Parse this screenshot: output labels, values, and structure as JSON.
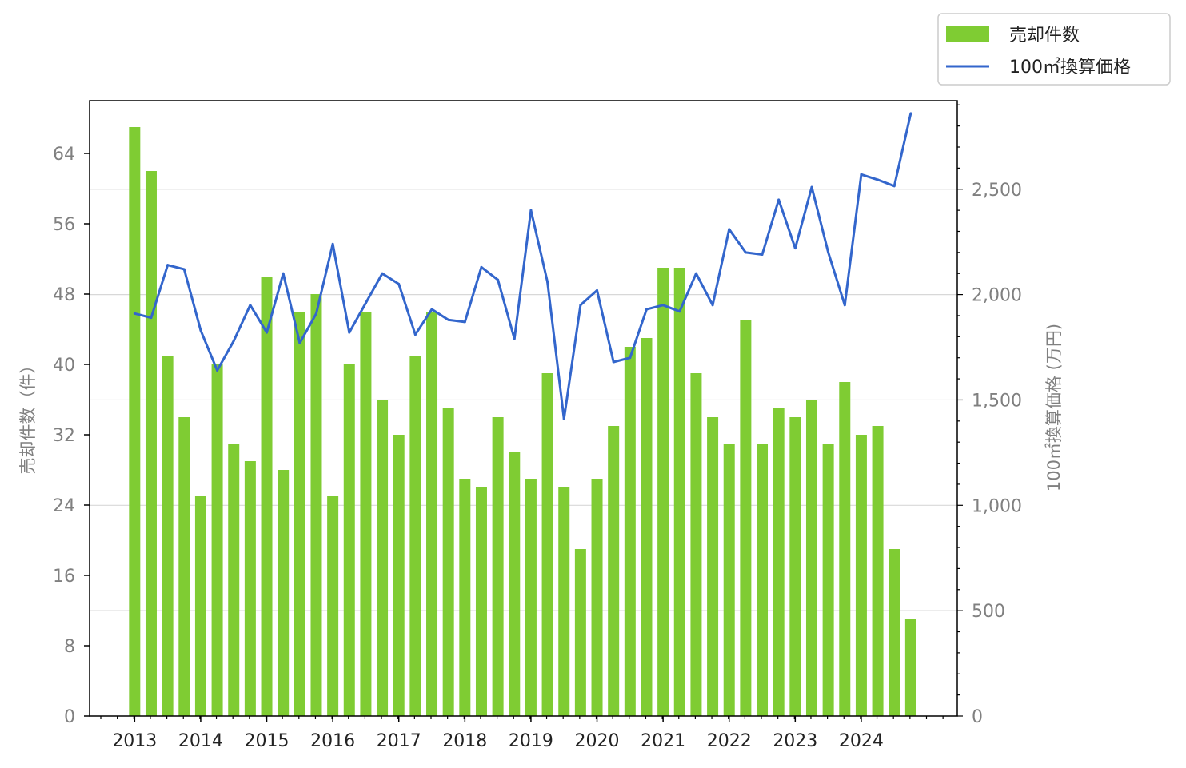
{
  "chart_data": {
    "type": "bar+line",
    "x_ticks": [
      "2013",
      "2014",
      "2015",
      "2016",
      "2017",
      "2018",
      "2019",
      "2020",
      "2021",
      "2022",
      "2023",
      "2024"
    ],
    "series": [
      {
        "name": "売却件数",
        "type": "bar",
        "axis": "left",
        "color": "#7fcc33",
        "values": [
          67,
          62,
          41,
          34,
          25,
          40,
          31,
          29,
          50,
          28,
          46,
          48,
          25,
          40,
          46,
          36,
          32,
          41,
          46,
          35,
          27,
          26,
          34,
          30,
          27,
          39,
          26,
          19,
          27,
          33,
          42,
          43,
          51,
          51,
          39,
          34,
          31,
          45,
          31,
          35,
          34,
          36,
          31,
          38,
          32,
          33,
          19,
          11
        ]
      },
      {
        "name": "100㎡換算価格",
        "type": "line",
        "axis": "right",
        "color": "#3366cc",
        "values": [
          1910,
          1890,
          2140,
          2120,
          1830,
          1640,
          1780,
          1950,
          1820,
          2100,
          1770,
          1910,
          2240,
          1820,
          1960,
          2100,
          2050,
          1810,
          1930,
          1880,
          1870,
          2130,
          2070,
          1790,
          2400,
          2060,
          1410,
          1950,
          2020,
          1680,
          1700,
          1930,
          1950,
          1920,
          2100,
          1950,
          2310,
          2200,
          2190,
          2450,
          2220,
          2510,
          2200,
          1950,
          2570,
          2545,
          2515,
          2860
        ]
      }
    ],
    "y_left": {
      "label": "売却件数（件）",
      "range": [
        0,
        70
      ],
      "ticks": [
        "0",
        "8",
        "16",
        "24",
        "32",
        "40",
        "48",
        "56",
        "64"
      ],
      "tick_values": [
        0,
        8,
        16,
        24,
        32,
        40,
        48,
        56,
        64
      ]
    },
    "y_right": {
      "label": "100㎡換算価格 (万円)",
      "range": [
        0,
        2920
      ],
      "ticks": [
        "0",
        "500",
        "1,000",
        "1,500",
        "2,000",
        "2,500"
      ],
      "tick_values": [
        0,
        500,
        1000,
        1500,
        2000,
        2500
      ]
    },
    "grid": "horizontal (right axis)",
    "legend_position": "top-right, outside plot"
  }
}
